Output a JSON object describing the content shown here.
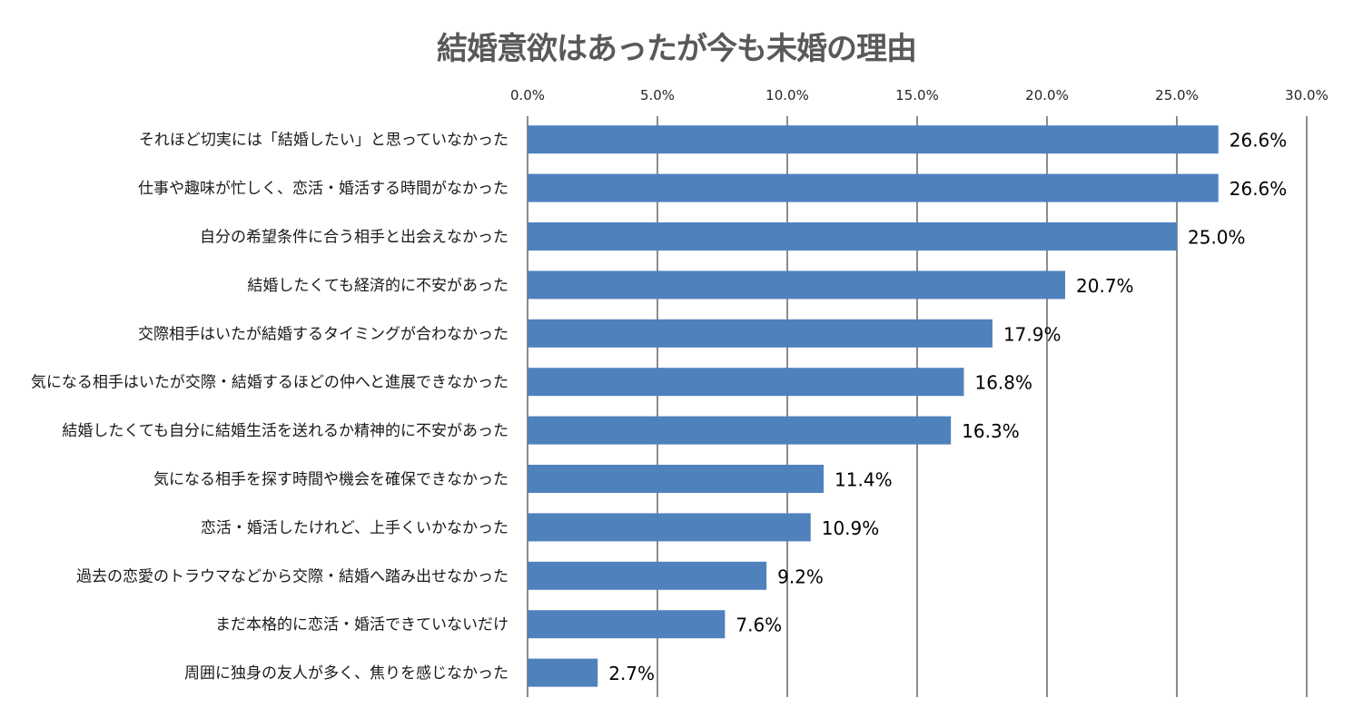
{
  "chart_data": {
    "type": "bar",
    "orientation": "horizontal",
    "title": "結婚意欲はあったが今も未婚の理由",
    "xlabel": "",
    "ylabel": "",
    "xlim": [
      0,
      30
    ],
    "x_ticks": [
      "0.0%",
      "5.0%",
      "10.0%",
      "15.0%",
      "20.0%",
      "25.0%",
      "30.0%"
    ],
    "x_tick_values": [
      0,
      5,
      10,
      15,
      20,
      25,
      30
    ],
    "x_axis_position": "top",
    "grid": true,
    "bar_color": "#4F81BD",
    "categories": [
      "それほど切実には「結婚したい」と思っていなかった",
      "仕事や趣味が忙しく、恋活・婚活する時間がなかった",
      "自分の希望条件に合う相手と出会えなかった",
      "結婚したくても経済的に不安があった",
      "交際相手はいたが結婚するタイミングが合わなかった",
      "気になる相手はいたが交際・結婚するほどの仲へと進展できなかった",
      "結婚したくても自分に結婚生活を送れるか精神的に不安があった",
      "気になる相手を探す時間や機会を確保できなかった",
      "恋活・婚活したけれど、上手くいかなかった",
      "過去の恋愛のトラウマなどから交際・結婚へ踏み出せなかった",
      "まだ本格的に恋活・婚活できていないだけ",
      "周囲に独身の友人が多く、焦りを感じなかった"
    ],
    "values": [
      26.6,
      26.6,
      25.0,
      20.7,
      17.9,
      16.8,
      16.3,
      11.4,
      10.9,
      9.2,
      7.6,
      2.7
    ],
    "data_labels": [
      "26.6%",
      "26.6%",
      "25.0%",
      "20.7%",
      "17.9%",
      "16.8%",
      "16.3%",
      "11.4%",
      "10.9%",
      "9.2%",
      "7.6%",
      "2.7%"
    ]
  }
}
